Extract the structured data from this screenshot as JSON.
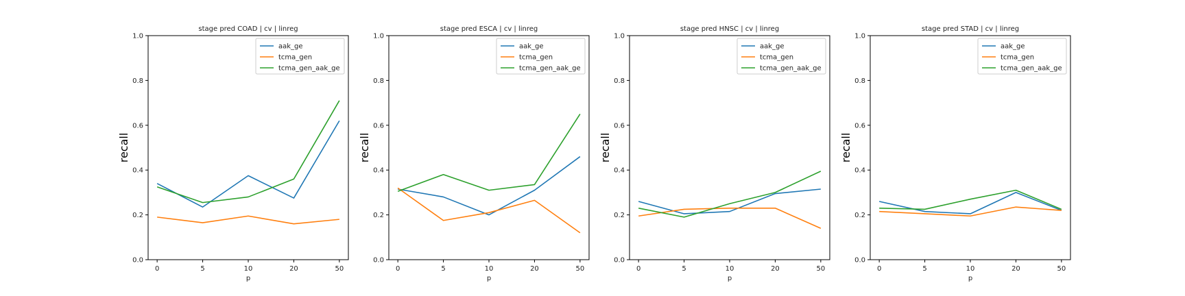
{
  "figure": {
    "colors": {
      "aak_ge": "#1f77b4",
      "tcma_gen": "#ff7f0e",
      "tcma_gen_aak_ge": "#2ca02c"
    }
  },
  "chart_data": [
    {
      "type": "line",
      "title": "stage pred COAD | cv | linreg",
      "xlabel": "p",
      "ylabel": "recall",
      "categories": [
        "0",
        "5",
        "10",
        "20",
        "50"
      ],
      "ylim": [
        0,
        1
      ],
      "yticks": [
        "0.0",
        "0.2",
        "0.4",
        "0.6",
        "0.8",
        "1.0"
      ],
      "legend_position": "top-right",
      "series": [
        {
          "name": "aak_ge",
          "values": [
            0.34,
            0.235,
            0.375,
            0.275,
            0.62
          ]
        },
        {
          "name": "tcma_gen",
          "values": [
            0.19,
            0.165,
            0.195,
            0.16,
            0.18
          ]
        },
        {
          "name": "tcma_gen_aak_ge",
          "values": [
            0.325,
            0.255,
            0.28,
            0.36,
            0.71
          ]
        }
      ]
    },
    {
      "type": "line",
      "title": "stage pred ESCA | cv | linreg",
      "xlabel": "p",
      "ylabel": "recall",
      "categories": [
        "0",
        "5",
        "10",
        "20",
        "50"
      ],
      "ylim": [
        0,
        1
      ],
      "yticks": [
        "0.0",
        "0.2",
        "0.4",
        "0.6",
        "0.8",
        "1.0"
      ],
      "legend_position": "top-right",
      "series": [
        {
          "name": "aak_ge",
          "values": [
            0.315,
            0.28,
            0.2,
            0.31,
            0.46
          ]
        },
        {
          "name": "tcma_gen",
          "values": [
            0.32,
            0.175,
            0.21,
            0.265,
            0.12
          ]
        },
        {
          "name": "tcma_gen_aak_ge",
          "values": [
            0.305,
            0.38,
            0.31,
            0.335,
            0.65
          ]
        }
      ]
    },
    {
      "type": "line",
      "title": "stage pred HNSC | cv | linreg",
      "xlabel": "p",
      "ylabel": "recall",
      "categories": [
        "0",
        "5",
        "10",
        "20",
        "50"
      ],
      "ylim": [
        0,
        1
      ],
      "yticks": [
        "0.0",
        "0.2",
        "0.4",
        "0.6",
        "0.8",
        "1.0"
      ],
      "legend_position": "top-right",
      "series": [
        {
          "name": "aak_ge",
          "values": [
            0.26,
            0.205,
            0.215,
            0.295,
            0.315
          ]
        },
        {
          "name": "tcma_gen",
          "values": [
            0.195,
            0.225,
            0.23,
            0.23,
            0.14
          ]
        },
        {
          "name": "tcma_gen_aak_ge",
          "values": [
            0.23,
            0.19,
            0.25,
            0.3,
            0.395
          ]
        }
      ]
    },
    {
      "type": "line",
      "title": "stage pred STAD | cv | linreg",
      "xlabel": "p",
      "ylabel": "recall",
      "categories": [
        "0",
        "5",
        "10",
        "20",
        "50"
      ],
      "ylim": [
        0,
        1
      ],
      "yticks": [
        "0.0",
        "0.2",
        "0.4",
        "0.6",
        "0.8",
        "1.0"
      ],
      "legend_position": "top-right",
      "series": [
        {
          "name": "aak_ge",
          "values": [
            0.26,
            0.215,
            0.205,
            0.3,
            0.22
          ]
        },
        {
          "name": "tcma_gen",
          "values": [
            0.215,
            0.205,
            0.195,
            0.235,
            0.22
          ]
        },
        {
          "name": "tcma_gen_aak_ge",
          "values": [
            0.23,
            0.225,
            0.27,
            0.31,
            0.225
          ]
        }
      ]
    }
  ]
}
